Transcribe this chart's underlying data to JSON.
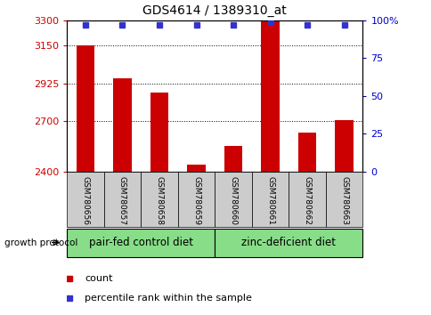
{
  "title": "GDS4614 / 1389310_at",
  "samples": [
    "GSM780656",
    "GSM780657",
    "GSM780658",
    "GSM780659",
    "GSM780660",
    "GSM780661",
    "GSM780662",
    "GSM780663"
  ],
  "counts": [
    3150,
    2955,
    2870,
    2440,
    2555,
    3295,
    2635,
    2705
  ],
  "percentiles": [
    97,
    97,
    97,
    97,
    97,
    99,
    97,
    97
  ],
  "ylim_left": [
    2400,
    3300
  ],
  "yticks_left": [
    2400,
    2700,
    2925,
    3150,
    3300
  ],
  "yticks_right": [
    0,
    25,
    50,
    75,
    100
  ],
  "ylim_right": [
    0,
    100
  ],
  "bar_color": "#cc0000",
  "dot_color": "#3333cc",
  "group1_label": "pair-fed control diet",
  "group2_label": "zinc-deficient diet",
  "group_bg_color": "#88dd88",
  "sample_bg_color": "#cccccc",
  "legend_count_color": "#cc0000",
  "legend_dot_color": "#3333cc",
  "growth_protocol_label": "growth protocol",
  "bar_bottom": 2400,
  "bar_width": 0.5
}
